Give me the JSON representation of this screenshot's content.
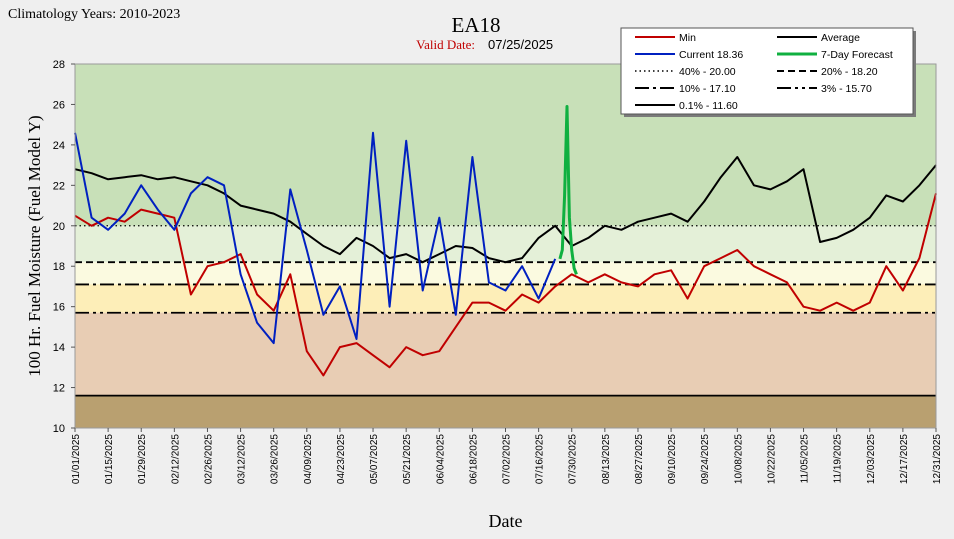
{
  "climatology_label": "Climatology Years: 2010-2023",
  "station": "EA18",
  "valid_date_label": "Valid Date:",
  "valid_date": "07/25/2025",
  "chart_data": {
    "type": "line",
    "xlabel": "Date",
    "ylabel": "100 Hr. Fuel Moisture (Fuel Model Y)",
    "ylim": [
      10,
      28
    ],
    "yticks": [
      10,
      12,
      14,
      16,
      18,
      20,
      22,
      24,
      26,
      28
    ],
    "x_range": [
      "01/01/2025",
      "12/31/2025"
    ],
    "x_ticks": [
      "01/01/2025",
      "01/15/2025",
      "01/29/2025",
      "02/12/2025",
      "02/26/2025",
      "03/12/2025",
      "03/26/2025",
      "04/09/2025",
      "04/23/2025",
      "05/07/2025",
      "05/21/2025",
      "06/04/2025",
      "06/18/2025",
      "07/02/2025",
      "07/16/2025",
      "07/30/2025",
      "08/13/2025",
      "08/27/2025",
      "09/10/2025",
      "09/24/2025",
      "10/08/2025",
      "10/22/2025",
      "11/05/2025",
      "11/19/2025",
      "12/03/2025",
      "12/17/2025",
      "12/31/2025"
    ],
    "bands": [
      {
        "from": 20.0,
        "to": 28,
        "color": "#c8e0b8"
      },
      {
        "from": 18.2,
        "to": 20.0,
        "color": "#e4f0d8"
      },
      {
        "from": 17.1,
        "to": 18.2,
        "color": "#fbfae0"
      },
      {
        "from": 15.7,
        "to": 17.1,
        "color": "#fdeeb8"
      },
      {
        "from": 11.6,
        "to": 15.7,
        "color": "#e8cdb4"
      },
      {
        "from": 10,
        "to": 11.6,
        "color": "#b9a070"
      }
    ],
    "legend": [
      {
        "label": "Min",
        "color": "#c00000",
        "dash": "solid",
        "width": 2
      },
      {
        "label": "Average",
        "color": "#000000",
        "dash": "solid",
        "width": 2
      },
      {
        "label": "Current 18.36",
        "color": "#0020c0",
        "dash": "solid",
        "width": 2
      },
      {
        "label": "7-Day Forecast",
        "color": "#10b040",
        "dash": "solid",
        "width": 3
      },
      {
        "label": "40% -  20.00",
        "color": "#000000",
        "dash": "dotted",
        "width": 1.5
      },
      {
        "label": "20% -  18.20",
        "color": "#000000",
        "dash": "dashed",
        "width": 2
      },
      {
        "label": "10% -  17.10",
        "color": "#000000",
        "dash": "dashdot",
        "width": 2
      },
      {
        "label": "3% -  15.70",
        "color": "#000000",
        "dash": "dashdotdot",
        "width": 2
      },
      {
        "label": "0.1% -  11.60",
        "color": "#000000",
        "dash": "solid",
        "width": 2
      }
    ],
    "thresholds": [
      {
        "name": "40%",
        "value": 20.0,
        "dash": "dotted"
      },
      {
        "name": "20%",
        "value": 18.2,
        "dash": "dashed"
      },
      {
        "name": "10%",
        "value": 17.1,
        "dash": "dashdot"
      },
      {
        "name": "3%",
        "value": 15.7,
        "dash": "dashdotdot"
      },
      {
        "name": "0.1%",
        "value": 11.6,
        "dash": "solid"
      }
    ],
    "series": [
      {
        "name": "Average",
        "color": "#000000",
        "x": [
          "01/01/2025",
          "01/08/2025",
          "01/15/2025",
          "01/22/2025",
          "01/29/2025",
          "02/05/2025",
          "02/12/2025",
          "02/19/2025",
          "02/26/2025",
          "03/05/2025",
          "03/12/2025",
          "03/19/2025",
          "03/26/2025",
          "04/02/2025",
          "04/09/2025",
          "04/16/2025",
          "04/23/2025",
          "04/30/2025",
          "05/07/2025",
          "05/14/2025",
          "05/21/2025",
          "05/28/2025",
          "06/04/2025",
          "06/11/2025",
          "06/18/2025",
          "06/25/2025",
          "07/02/2025",
          "07/09/2025",
          "07/16/2025",
          "07/23/2025",
          "07/30/2025",
          "08/06/2025",
          "08/13/2025",
          "08/20/2025",
          "08/27/2025",
          "09/03/2025",
          "09/10/2025",
          "09/17/2025",
          "09/24/2025",
          "10/01/2025",
          "10/08/2025",
          "10/15/2025",
          "10/22/2025",
          "10/29/2025",
          "11/05/2025",
          "11/12/2025",
          "11/19/2025",
          "11/26/2025",
          "12/03/2025",
          "12/10/2025",
          "12/17/2025",
          "12/24/2025",
          "12/31/2025"
        ],
        "y": [
          22.8,
          22.6,
          22.3,
          22.4,
          22.5,
          22.3,
          22.4,
          22.2,
          22.0,
          21.6,
          21.0,
          20.8,
          20.6,
          20.2,
          19.6,
          19.0,
          18.6,
          19.4,
          19.0,
          18.4,
          18.6,
          18.2,
          18.6,
          19.0,
          18.9,
          18.4,
          18.2,
          18.4,
          19.4,
          20.0,
          19.0,
          19.4,
          20.0,
          19.8,
          20.2,
          20.4,
          20.6,
          20.2,
          21.2,
          22.4,
          23.4,
          22.0,
          21.8,
          22.2,
          22.8,
          19.2,
          19.4,
          19.8,
          20.4,
          21.5,
          21.2,
          22.0,
          23.0
        ]
      },
      {
        "name": "Min",
        "color": "#c00000",
        "x": [
          "01/01/2025",
          "01/08/2025",
          "01/15/2025",
          "01/22/2025",
          "01/29/2025",
          "02/05/2025",
          "02/12/2025",
          "02/19/2025",
          "02/26/2025",
          "03/05/2025",
          "03/12/2025",
          "03/19/2025",
          "03/26/2025",
          "04/02/2025",
          "04/09/2025",
          "04/16/2025",
          "04/23/2025",
          "04/30/2025",
          "05/07/2025",
          "05/14/2025",
          "05/21/2025",
          "05/28/2025",
          "06/04/2025",
          "06/11/2025",
          "06/18/2025",
          "06/25/2025",
          "07/02/2025",
          "07/09/2025",
          "07/16/2025",
          "07/23/2025",
          "07/30/2025",
          "08/06/2025",
          "08/13/2025",
          "08/20/2025",
          "08/27/2025",
          "09/03/2025",
          "09/10/2025",
          "09/17/2025",
          "09/24/2025",
          "10/01/2025",
          "10/08/2025",
          "10/15/2025",
          "10/22/2025",
          "10/29/2025",
          "11/05/2025",
          "11/12/2025",
          "11/19/2025",
          "11/26/2025",
          "12/03/2025",
          "12/10/2025",
          "12/17/2025",
          "12/24/2025",
          "12/31/2025"
        ],
        "y": [
          20.5,
          20.0,
          20.4,
          20.2,
          20.8,
          20.6,
          20.4,
          16.6,
          18.0,
          18.2,
          18.6,
          16.6,
          15.8,
          17.6,
          13.8,
          12.6,
          14.0,
          14.2,
          13.6,
          13.0,
          14.0,
          13.6,
          13.8,
          15.0,
          16.2,
          16.2,
          15.8,
          16.6,
          16.2,
          17.0,
          17.6,
          17.2,
          17.6,
          17.2,
          17.0,
          17.6,
          17.8,
          16.4,
          18.0,
          18.4,
          18.8,
          18.0,
          17.6,
          17.2,
          16.0,
          15.8,
          16.2,
          15.8,
          16.2,
          18.0,
          16.8,
          18.4,
          21.6
        ]
      },
      {
        "name": "Current 18.36",
        "color": "#0020c0",
        "x": [
          "01/01/2025",
          "01/08/2025",
          "01/15/2025",
          "01/22/2025",
          "01/29/2025",
          "02/05/2025",
          "02/12/2025",
          "02/19/2025",
          "02/26/2025",
          "03/05/2025",
          "03/12/2025",
          "03/19/2025",
          "03/26/2025",
          "04/02/2025",
          "04/09/2025",
          "04/16/2025",
          "04/23/2025",
          "04/30/2025",
          "05/07/2025",
          "05/14/2025",
          "05/21/2025",
          "05/28/2025",
          "06/04/2025",
          "06/11/2025",
          "06/18/2025",
          "06/25/2025",
          "07/02/2025",
          "07/09/2025",
          "07/16/2025",
          "07/23/2025"
        ],
        "y": [
          24.6,
          20.4,
          19.8,
          20.6,
          22.0,
          20.8,
          19.8,
          21.6,
          22.4,
          22.0,
          17.6,
          15.2,
          14.2,
          21.8,
          18.8,
          15.6,
          17.0,
          14.4,
          24.6,
          16.0,
          24.2,
          16.8,
          20.4,
          15.6,
          23.4,
          17.2,
          16.8,
          18.0,
          16.4,
          18.36
        ]
      },
      {
        "name": "7-Day Forecast",
        "color": "#10b040",
        "x": [
          "07/25/2025",
          "07/26/2025",
          "07/27/2025",
          "07/28/2025",
          "07/29/2025",
          "07/30/2025",
          "07/31/2025",
          "08/01/2025"
        ],
        "y": [
          18.36,
          18.8,
          21.5,
          25.9,
          20.4,
          18.8,
          17.9,
          17.6
        ]
      }
    ]
  }
}
